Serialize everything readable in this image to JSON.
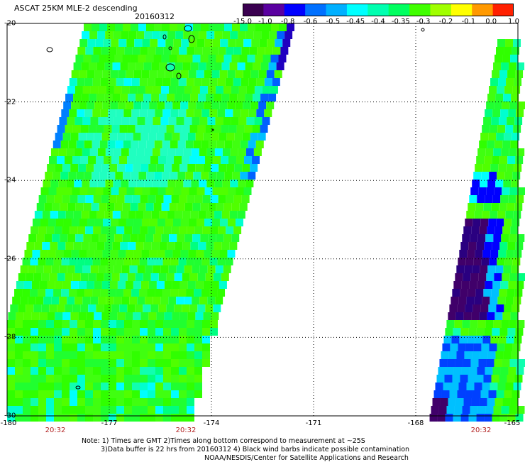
{
  "title": "ASCAT 25KM MLE-2 descending",
  "date": "20160312",
  "colorbar": {
    "labels": [
      "-15.0",
      "-1.0",
      "-0.8",
      "-0.6",
      "-0.5",
      "-0.45",
      "-0.4",
      "-0.35",
      "-0.3",
      "-0.2",
      "-0.1",
      "0.0",
      "1.0"
    ],
    "colors": [
      "#3a0050",
      "#5a00a0",
      "#0000ff",
      "#0070ff",
      "#00b0ff",
      "#00ffff",
      "#00ffb0",
      "#00ff60",
      "#40ff00",
      "#a0ff00",
      "#ffff00",
      "#ff9900",
      "#ff2000"
    ]
  },
  "axes": {
    "lat_labels": [
      "-20",
      "-22",
      "-24",
      "-26",
      "-28",
      "-30"
    ],
    "lon_labels": [
      "-180",
      "-177",
      "-174",
      "-171",
      "-168",
      "-165"
    ],
    "time_labels": [
      "20:32",
      "20:32",
      "20:32"
    ],
    "lat_range": [
      -30,
      -20
    ],
    "lon_range": [
      -180,
      -165
    ]
  },
  "notes": [
    "Note: 1) Times are GMT 2)Times along bottom correspond to measurement at ~25S",
    "3)Data buffer is 22 hrs from 20160312 4) Black wind barbs indicate possible contamination",
    "NOAA/NESDIS/Center for Satellite Applications and Research"
  ],
  "colors": {
    "land_outline": "#000000",
    "grid": "#000000",
    "time_label": "#b22222"
  }
}
